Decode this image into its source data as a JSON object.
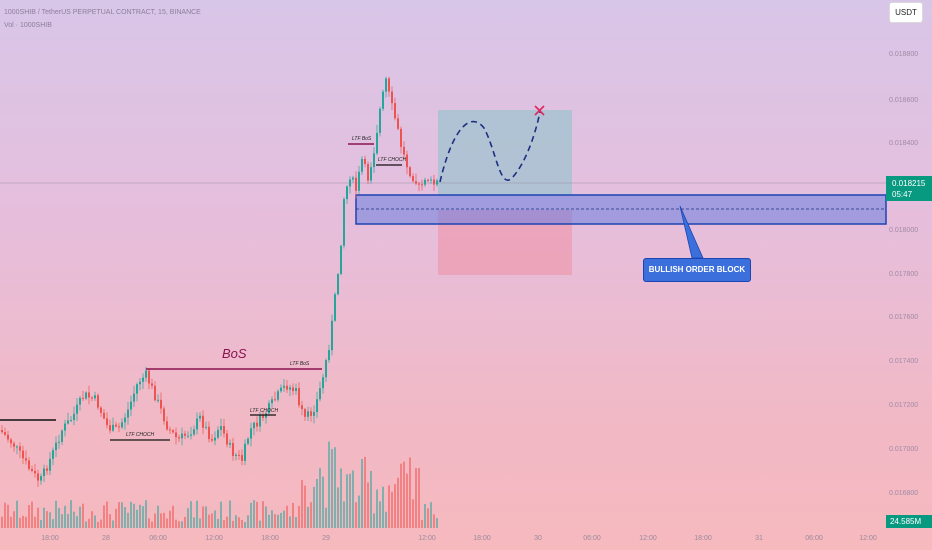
{
  "header": {
    "title": "1000SHIB / TetherUS PERPETUAL CONTRACT, 15, BINANCE",
    "volume_label": "Vol · 1000SHIB"
  },
  "currency_button": "USDT",
  "price_axis": [
    "0.018800",
    "0.018600",
    "0.018400",
    "0.018000",
    "0.017800",
    "0.017600",
    "0.017400",
    "0.017200",
    "0.017000",
    "0.016800"
  ],
  "time_axis": [
    "18:00",
    "28",
    "06:00",
    "12:00",
    "18:00",
    "29",
    "12:00",
    "18:00",
    "30",
    "06:00",
    "12:00",
    "18:00",
    "31",
    "06:00",
    "12:00"
  ],
  "current_price": "0.018215",
  "countdown": "05:47",
  "volume_value": "24.585M",
  "annotations": {
    "bos": "BoS",
    "ltf_bos_low": "LTF BoS",
    "ltf_bos_high": "LTF BoS",
    "ltf_choch_1": "LTF CHOCH",
    "ltf_choch_2": "LTF CHOCH",
    "ltf_choch_3": "LTF CHOCH",
    "order_block": "BULLISH ORDER BLOCK"
  },
  "colors": {
    "up": "#26a69a",
    "down": "#ef5350",
    "order_block": "#3b6fdc",
    "tag": "#089981",
    "bos_line": "#8b1350",
    "target_x": "#e0245e"
  }
}
